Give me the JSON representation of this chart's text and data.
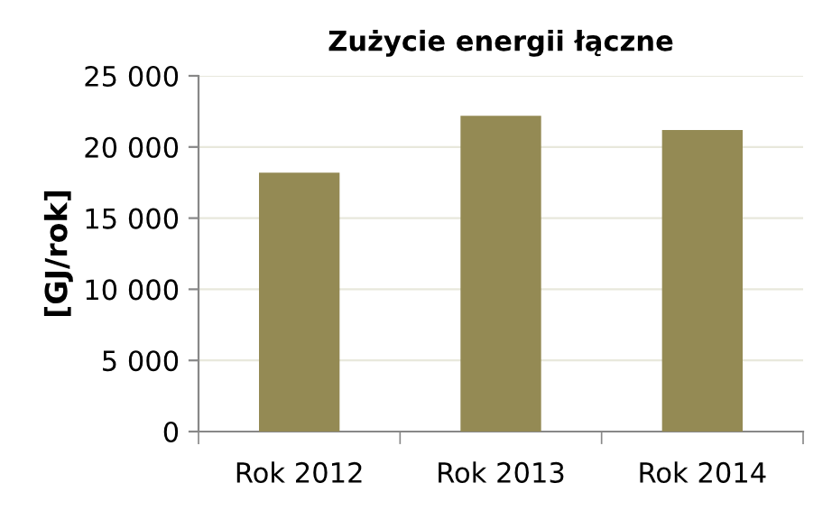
{
  "chart_data": {
    "type": "bar",
    "title": "Zużycie energii łączne",
    "ylabel": "[GJ/rok]",
    "categories": [
      "Rok 2012",
      "Rok 2013",
      "Rok 2014"
    ],
    "values": [
      18200,
      22200,
      21200
    ],
    "color": "#948a54",
    "ylim": [
      0,
      25000
    ],
    "yticks": [
      {
        "value": 0,
        "label": "0"
      },
      {
        "value": 5000,
        "label": "5 000"
      },
      {
        "value": 10000,
        "label": "10 000"
      },
      {
        "value": 15000,
        "label": "15 000"
      },
      {
        "value": 20000,
        "label": "20 000"
      },
      {
        "value": 25000,
        "label": "25 000"
      }
    ],
    "grid": "y"
  }
}
